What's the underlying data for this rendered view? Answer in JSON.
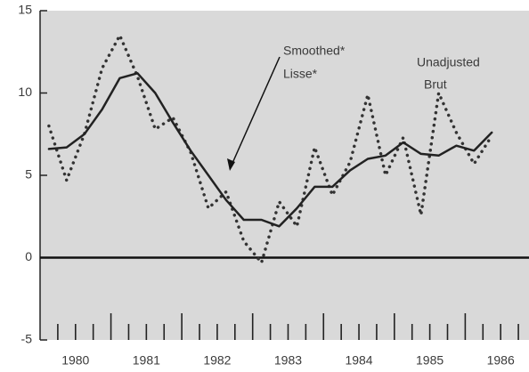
{
  "chart_data": {
    "type": "line",
    "x": [
      1980.125,
      1980.375,
      1980.625,
      1980.875,
      1981.125,
      1981.375,
      1981.625,
      1981.875,
      1982.125,
      1982.375,
      1982.625,
      1982.875,
      1983.125,
      1983.375,
      1983.625,
      1983.875,
      1984.125,
      1984.375,
      1984.625,
      1984.875,
      1985.125,
      1985.375,
      1985.625,
      1985.875,
      1986.125,
      1986.375
    ],
    "series": [
      {
        "name": "Unadjusted",
        "color": "#333333",
        "dash": "dotted",
        "values": [
          8.0,
          4.7,
          7.5,
          11.5,
          13.5,
          11.0,
          7.8,
          8.5,
          6.4,
          3.0,
          4.0,
          1.0,
          -0.3,
          3.4,
          1.9,
          6.7,
          3.8,
          5.8,
          9.9,
          5.0,
          7.3,
          2.6,
          10.0,
          7.6,
          5.7,
          7.4
        ]
      },
      {
        "name": "Smoothed",
        "color": "#222222",
        "dash": "solid",
        "values": [
          6.6,
          6.7,
          7.5,
          9.0,
          10.9,
          11.2,
          10.0,
          8.2,
          6.5,
          5.0,
          3.5,
          2.3,
          2.3,
          1.9,
          3.0,
          4.3,
          4.3,
          5.3,
          6.0,
          6.2,
          7.0,
          6.3,
          6.2,
          6.8,
          6.5,
          7.6
        ]
      }
    ],
    "annotations": [
      "Smoothed*",
      "Lisse*",
      "Unadjusted",
      "Brut"
    ],
    "reference_line": 0,
    "xlim": [
      1980,
      1986.9
    ],
    "ylim": [
      -5,
      15
    ],
    "yticks": [
      -5,
      0,
      5,
      10,
      15
    ],
    "xticks": [
      {
        "value": 1980.5,
        "label": "1980"
      },
      {
        "value": 1981.5,
        "label": "1981"
      },
      {
        "value": 1982.5,
        "label": "1982"
      },
      {
        "value": 1983.5,
        "label": "1983"
      },
      {
        "value": 1984.5,
        "label": "1984"
      },
      {
        "value": 1985.5,
        "label": "1985"
      },
      {
        "value": 1986.5,
        "label": "1986"
      }
    ],
    "xmajorticks": [
      1981,
      1982,
      1983,
      1984,
      1985,
      1986
    ],
    "xminorticks": [
      1980.25,
      1980.5,
      1980.75,
      1981.25,
      1981.5,
      1981.75,
      1982.25,
      1982.5,
      1982.75,
      1983.25,
      1983.5,
      1983.75,
      1984.25,
      1984.5,
      1984.75,
      1985.25,
      1985.5,
      1985.75,
      1986.25,
      1986.5,
      1986.75
    ]
  }
}
